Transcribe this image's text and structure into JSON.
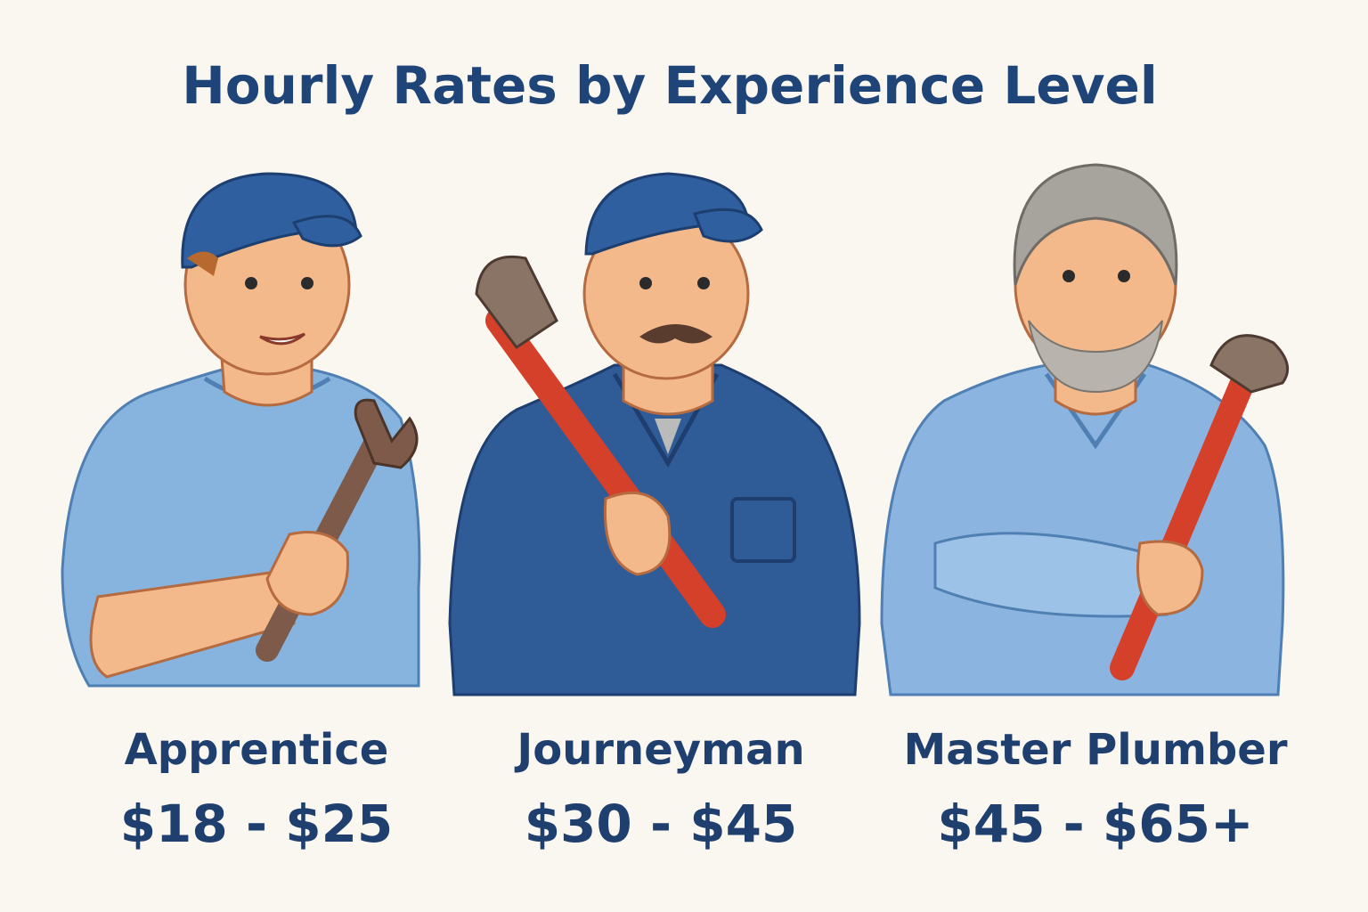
{
  "title": "Hourly Rates by Experience Level",
  "levels": [
    {
      "name": "Apprentice",
      "rate": "$18 - $25"
    },
    {
      "name": "Journeyman",
      "rate": "$30 - $45"
    },
    {
      "name": "Master Plumber",
      "rate": "$45 - $65+"
    }
  ]
}
